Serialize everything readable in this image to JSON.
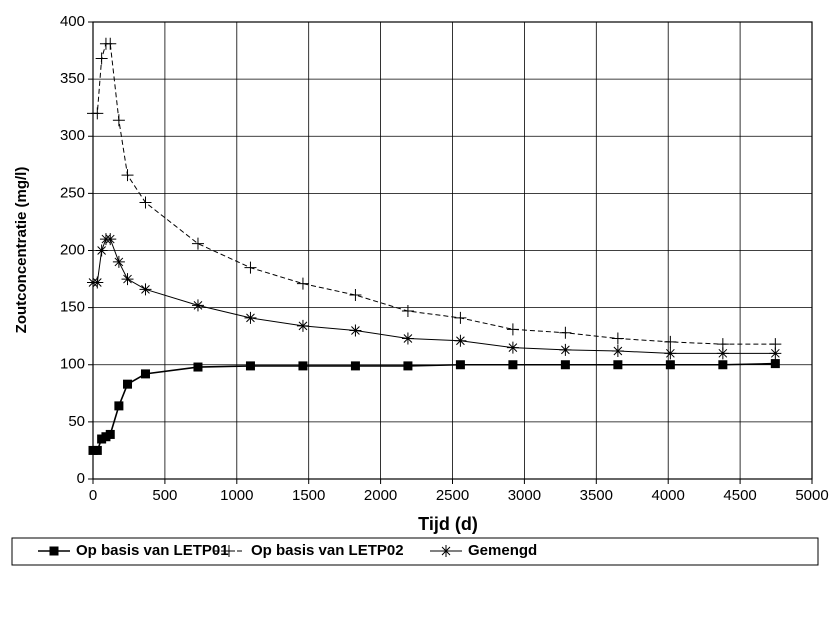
{
  "chart_data": {
    "type": "line",
    "x_label": "Tijd (d)",
    "y_label": "Zoutconcentratie (mg/l)",
    "x": [
      0,
      30,
      60,
      90,
      120,
      180,
      240,
      365,
      730,
      1095,
      1460,
      1825,
      2190,
      2555,
      2920,
      3285,
      3650,
      4015,
      4380,
      4745
    ],
    "series": [
      {
        "name": "Op basis van LETP01",
        "color": "#000000",
        "marker": "square",
        "dashed": false,
        "values": [
          25,
          25,
          35,
          37,
          39,
          64,
          83,
          92,
          98,
          99,
          99,
          99,
          99,
          100,
          100,
          100,
          100,
          100,
          100,
          101
        ]
      },
      {
        "name": "Op basis van LETP02",
        "color": "#000000",
        "marker": "plus",
        "dashed": true,
        "values": [
          320,
          320,
          368,
          381,
          381,
          314,
          266,
          242,
          206,
          185,
          171,
          161,
          147,
          141,
          131,
          128,
          123,
          120,
          118,
          118
        ]
      },
      {
        "name": "Gemengd",
        "color": "#000000",
        "marker": "star",
        "dashed": false,
        "values": [
          172,
          172,
          200,
          210,
          210,
          190,
          175,
          166,
          152,
          141,
          134,
          130,
          123,
          121,
          115,
          113,
          112,
          110,
          110,
          110
        ]
      }
    ],
    "xlim": [
      0,
      5000
    ],
    "xticks": [
      0,
      500,
      1000,
      1500,
      2000,
      2500,
      3000,
      3500,
      4000,
      4500,
      5000
    ],
    "ylim": [
      0,
      400
    ],
    "yticks": [
      0,
      50,
      100,
      150,
      200,
      250,
      300,
      350,
      400
    ],
    "grid": true,
    "legend": "bottom"
  }
}
